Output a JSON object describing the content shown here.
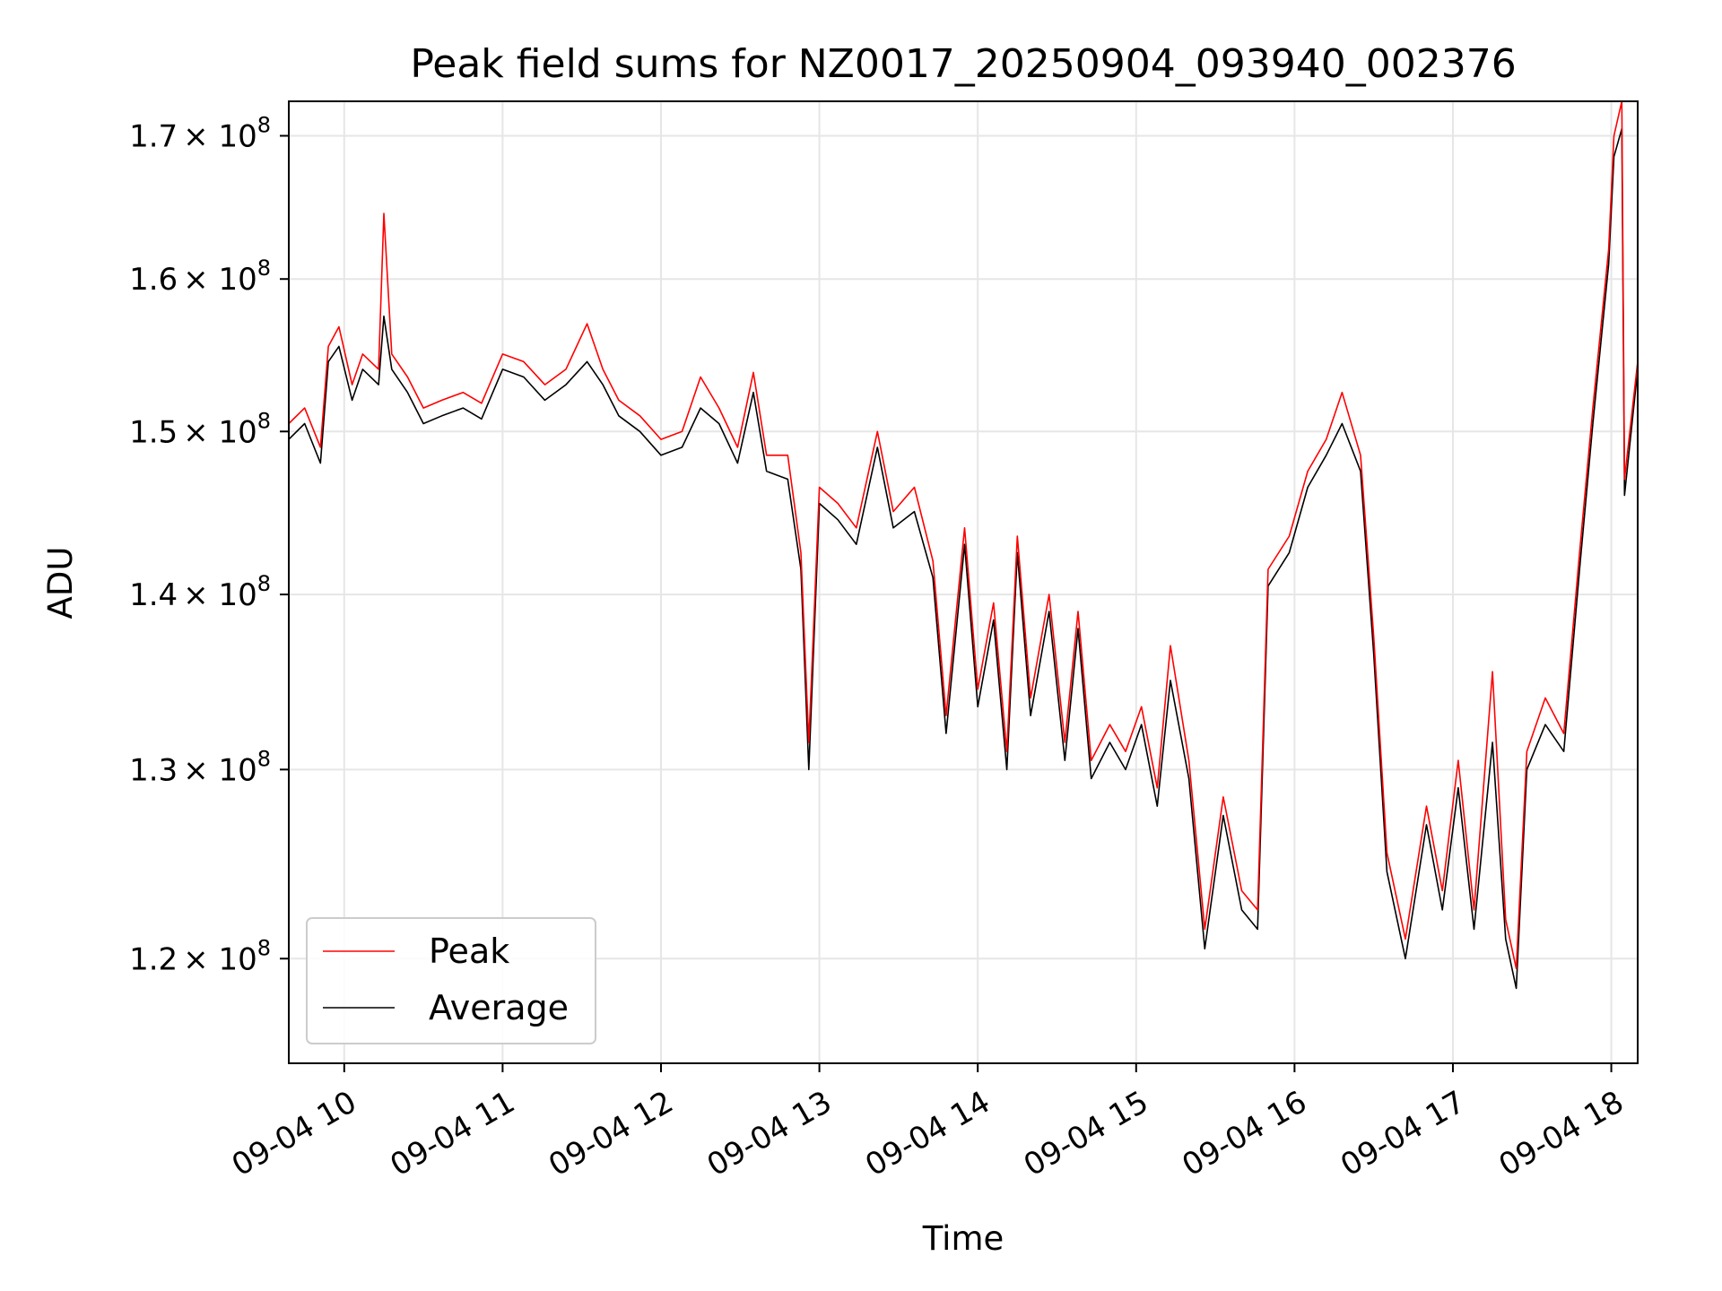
{
  "chart_data": {
    "type": "line",
    "title": "Peak field sums for NZ0017_20250904_093940_002376",
    "xlabel": "Time",
    "ylabel": "ADU",
    "xlim": [
      "2025-09-04 09:39",
      "2025-09-04 18:10"
    ],
    "ylim": [
      114800000,
      172500000
    ],
    "y_scale": "log",
    "grid": true,
    "legend_position": "lower-left",
    "x_ticks": [
      {
        "time": "2025-09-04 10:00",
        "label": "09-04 10"
      },
      {
        "time": "2025-09-04 11:00",
        "label": "09-04 11"
      },
      {
        "time": "2025-09-04 12:00",
        "label": "09-04 12"
      },
      {
        "time": "2025-09-04 13:00",
        "label": "09-04 13"
      },
      {
        "time": "2025-09-04 14:00",
        "label": "09-04 14"
      },
      {
        "time": "2025-09-04 15:00",
        "label": "09-04 15"
      },
      {
        "time": "2025-09-04 16:00",
        "label": "09-04 16"
      },
      {
        "time": "2025-09-04 17:00",
        "label": "09-04 17"
      },
      {
        "time": "2025-09-04 18:00",
        "label": "09-04 18"
      }
    ],
    "y_ticks": [
      {
        "value": 120000000,
        "mantissa": "1.2"
      },
      {
        "value": 130000000,
        "mantissa": "1.3"
      },
      {
        "value": 140000000,
        "mantissa": "1.4"
      },
      {
        "value": 150000000,
        "mantissa": "1.5"
      },
      {
        "value": 160000000,
        "mantissa": "1.6"
      },
      {
        "value": 170000000,
        "mantissa": "1.7"
      }
    ],
    "y_tick_suffix": "× 10",
    "y_tick_exponent": "8",
    "series": [
      {
        "name": "Average",
        "color": "#000000",
        "points": [
          [
            "2025-09-04 09:39",
            149500000
          ],
          [
            "2025-09-04 09:45",
            150500000
          ],
          [
            "2025-09-04 09:51",
            148000000
          ],
          [
            "2025-09-04 09:54",
            154500000
          ],
          [
            "2025-09-04 09:58",
            155500000
          ],
          [
            "2025-09-04 10:03",
            152000000
          ],
          [
            "2025-09-04 10:07",
            154000000
          ],
          [
            "2025-09-04 10:13",
            153000000
          ],
          [
            "2025-09-04 10:15",
            157500000
          ],
          [
            "2025-09-04 10:18",
            154000000
          ],
          [
            "2025-09-04 10:24",
            152500000
          ],
          [
            "2025-09-04 10:30",
            150500000
          ],
          [
            "2025-09-04 10:37",
            151000000
          ],
          [
            "2025-09-04 10:45",
            151500000
          ],
          [
            "2025-09-04 10:52",
            150800000
          ],
          [
            "2025-09-04 11:00",
            154000000
          ],
          [
            "2025-09-04 11:08",
            153500000
          ],
          [
            "2025-09-04 11:16",
            152000000
          ],
          [
            "2025-09-04 11:24",
            153000000
          ],
          [
            "2025-09-04 11:32",
            154500000
          ],
          [
            "2025-09-04 11:38",
            153000000
          ],
          [
            "2025-09-04 11:44",
            151000000
          ],
          [
            "2025-09-04 11:52",
            150000000
          ],
          [
            "2025-09-04 12:00",
            148500000
          ],
          [
            "2025-09-04 12:08",
            149000000
          ],
          [
            "2025-09-04 12:15",
            151500000
          ],
          [
            "2025-09-04 12:22",
            150500000
          ],
          [
            "2025-09-04 12:29",
            148000000
          ],
          [
            "2025-09-04 12:35",
            152500000
          ],
          [
            "2025-09-04 12:40",
            147500000
          ],
          [
            "2025-09-04 12:48",
            147000000
          ],
          [
            "2025-09-04 12:53",
            141500000
          ],
          [
            "2025-09-04 12:56",
            130000000
          ],
          [
            "2025-09-04 13:00",
            145500000
          ],
          [
            "2025-09-04 13:07",
            144500000
          ],
          [
            "2025-09-04 13:14",
            143000000
          ],
          [
            "2025-09-04 13:22",
            149000000
          ],
          [
            "2025-09-04 13:28",
            144000000
          ],
          [
            "2025-09-04 13:36",
            145000000
          ],
          [
            "2025-09-04 13:43",
            141000000
          ],
          [
            "2025-09-04 13:48",
            132000000
          ],
          [
            "2025-09-04 13:55",
            143000000
          ],
          [
            "2025-09-04 14:00",
            133500000
          ],
          [
            "2025-09-04 14:06",
            138500000
          ],
          [
            "2025-09-04 14:11",
            130000000
          ],
          [
            "2025-09-04 14:15",
            142500000
          ],
          [
            "2025-09-04 14:20",
            133000000
          ],
          [
            "2025-09-04 14:27",
            139000000
          ],
          [
            "2025-09-04 14:33",
            130500000
          ],
          [
            "2025-09-04 14:38",
            138000000
          ],
          [
            "2025-09-04 14:43",
            129500000
          ],
          [
            "2025-09-04 14:50",
            131500000
          ],
          [
            "2025-09-04 14:56",
            130000000
          ],
          [
            "2025-09-04 15:02",
            132500000
          ],
          [
            "2025-09-04 15:08",
            128000000
          ],
          [
            "2025-09-04 15:13",
            135000000
          ],
          [
            "2025-09-04 15:20",
            129500000
          ],
          [
            "2025-09-04 15:26",
            120500000
          ],
          [
            "2025-09-04 15:33",
            127500000
          ],
          [
            "2025-09-04 15:40",
            122500000
          ],
          [
            "2025-09-04 15:46",
            121500000
          ],
          [
            "2025-09-04 15:50",
            140500000
          ],
          [
            "2025-09-04 15:58",
            142500000
          ],
          [
            "2025-09-04 16:05",
            146500000
          ],
          [
            "2025-09-04 16:12",
            148500000
          ],
          [
            "2025-09-04 16:18",
            150500000
          ],
          [
            "2025-09-04 16:25",
            147500000
          ],
          [
            "2025-09-04 16:30",
            136500000
          ],
          [
            "2025-09-04 16:35",
            124500000
          ],
          [
            "2025-09-04 16:42",
            120000000
          ],
          [
            "2025-09-04 16:50",
            127000000
          ],
          [
            "2025-09-04 16:56",
            122500000
          ],
          [
            "2025-09-04 17:02",
            129000000
          ],
          [
            "2025-09-04 17:08",
            121500000
          ],
          [
            "2025-09-04 17:15",
            131500000
          ],
          [
            "2025-09-04 17:20",
            121000000
          ],
          [
            "2025-09-04 17:24",
            118500000
          ],
          [
            "2025-09-04 17:28",
            130000000
          ],
          [
            "2025-09-04 17:35",
            132500000
          ],
          [
            "2025-09-04 17:42",
            131000000
          ],
          [
            "2025-09-04 17:48",
            141500000
          ],
          [
            "2025-09-04 17:53",
            150500000
          ],
          [
            "2025-09-04 17:59",
            161000000
          ],
          [
            "2025-09-04 18:01",
            168500000
          ],
          [
            "2025-09-04 18:04",
            170500000
          ],
          [
            "2025-09-04 18:05",
            146000000
          ],
          [
            "2025-09-04 18:10",
            154000000
          ]
        ]
      },
      {
        "name": "Peak",
        "color": "#ff0000",
        "points": [
          [
            "2025-09-04 09:39",
            150500000
          ],
          [
            "2025-09-04 09:45",
            151500000
          ],
          [
            "2025-09-04 09:51",
            149000000
          ],
          [
            "2025-09-04 09:54",
            155500000
          ],
          [
            "2025-09-04 09:58",
            156800000
          ],
          [
            "2025-09-04 10:03",
            153000000
          ],
          [
            "2025-09-04 10:07",
            155000000
          ],
          [
            "2025-09-04 10:13",
            154000000
          ],
          [
            "2025-09-04 10:15",
            164500000
          ],
          [
            "2025-09-04 10:18",
            155000000
          ],
          [
            "2025-09-04 10:24",
            153500000
          ],
          [
            "2025-09-04 10:30",
            151500000
          ],
          [
            "2025-09-04 10:37",
            152000000
          ],
          [
            "2025-09-04 10:45",
            152500000
          ],
          [
            "2025-09-04 10:52",
            151800000
          ],
          [
            "2025-09-04 11:00",
            155000000
          ],
          [
            "2025-09-04 11:08",
            154500000
          ],
          [
            "2025-09-04 11:16",
            153000000
          ],
          [
            "2025-09-04 11:24",
            154000000
          ],
          [
            "2025-09-04 11:32",
            157000000
          ],
          [
            "2025-09-04 11:38",
            154000000
          ],
          [
            "2025-09-04 11:44",
            152000000
          ],
          [
            "2025-09-04 11:52",
            151000000
          ],
          [
            "2025-09-04 12:00",
            149500000
          ],
          [
            "2025-09-04 12:08",
            150000000
          ],
          [
            "2025-09-04 12:15",
            153500000
          ],
          [
            "2025-09-04 12:22",
            151500000
          ],
          [
            "2025-09-04 12:29",
            149000000
          ],
          [
            "2025-09-04 12:35",
            153800000
          ],
          [
            "2025-09-04 12:40",
            148500000
          ],
          [
            "2025-09-04 12:48",
            148500000
          ],
          [
            "2025-09-04 12:53",
            142500000
          ],
          [
            "2025-09-04 12:56",
            131500000
          ],
          [
            "2025-09-04 13:00",
            146500000
          ],
          [
            "2025-09-04 13:07",
            145500000
          ],
          [
            "2025-09-04 13:14",
            144000000
          ],
          [
            "2025-09-04 13:22",
            150000000
          ],
          [
            "2025-09-04 13:28",
            145000000
          ],
          [
            "2025-09-04 13:36",
            146500000
          ],
          [
            "2025-09-04 13:43",
            142000000
          ],
          [
            "2025-09-04 13:48",
            133000000
          ],
          [
            "2025-09-04 13:55",
            144000000
          ],
          [
            "2025-09-04 14:00",
            134500000
          ],
          [
            "2025-09-04 14:06",
            139500000
          ],
          [
            "2025-09-04 14:11",
            131000000
          ],
          [
            "2025-09-04 14:15",
            143500000
          ],
          [
            "2025-09-04 14:20",
            134000000
          ],
          [
            "2025-09-04 14:27",
            140000000
          ],
          [
            "2025-09-04 14:33",
            131500000
          ],
          [
            "2025-09-04 14:38",
            139000000
          ],
          [
            "2025-09-04 14:43",
            130500000
          ],
          [
            "2025-09-04 14:50",
            132500000
          ],
          [
            "2025-09-04 14:56",
            131000000
          ],
          [
            "2025-09-04 15:02",
            133500000
          ],
          [
            "2025-09-04 15:08",
            129000000
          ],
          [
            "2025-09-04 15:13",
            137000000
          ],
          [
            "2025-09-04 15:20",
            130500000
          ],
          [
            "2025-09-04 15:26",
            121500000
          ],
          [
            "2025-09-04 15:33",
            128500000
          ],
          [
            "2025-09-04 15:40",
            123500000
          ],
          [
            "2025-09-04 15:46",
            122500000
          ],
          [
            "2025-09-04 15:50",
            141500000
          ],
          [
            "2025-09-04 15:58",
            143500000
          ],
          [
            "2025-09-04 16:05",
            147500000
          ],
          [
            "2025-09-04 16:12",
            149500000
          ],
          [
            "2025-09-04 16:18",
            152500000
          ],
          [
            "2025-09-04 16:25",
            148500000
          ],
          [
            "2025-09-04 16:30",
            137500000
          ],
          [
            "2025-09-04 16:35",
            125500000
          ],
          [
            "2025-09-04 16:42",
            121000000
          ],
          [
            "2025-09-04 16:50",
            128000000
          ],
          [
            "2025-09-04 16:56",
            123500000
          ],
          [
            "2025-09-04 17:02",
            130500000
          ],
          [
            "2025-09-04 17:08",
            122500000
          ],
          [
            "2025-09-04 17:15",
            135500000
          ],
          [
            "2025-09-04 17:20",
            122000000
          ],
          [
            "2025-09-04 17:24",
            119500000
          ],
          [
            "2025-09-04 17:28",
            131000000
          ],
          [
            "2025-09-04 17:35",
            134000000
          ],
          [
            "2025-09-04 17:42",
            132000000
          ],
          [
            "2025-09-04 17:48",
            142500000
          ],
          [
            "2025-09-04 17:53",
            151500000
          ],
          [
            "2025-09-04 17:59",
            162000000
          ],
          [
            "2025-09-04 18:01",
            170000000
          ],
          [
            "2025-09-04 18:04",
            172500000
          ],
          [
            "2025-09-04 18:05",
            147000000
          ],
          [
            "2025-09-04 18:10",
            154500000
          ]
        ]
      }
    ],
    "legend": [
      {
        "name": "Peak",
        "color": "#ff0000"
      },
      {
        "name": "Average",
        "color": "#000000"
      }
    ]
  }
}
